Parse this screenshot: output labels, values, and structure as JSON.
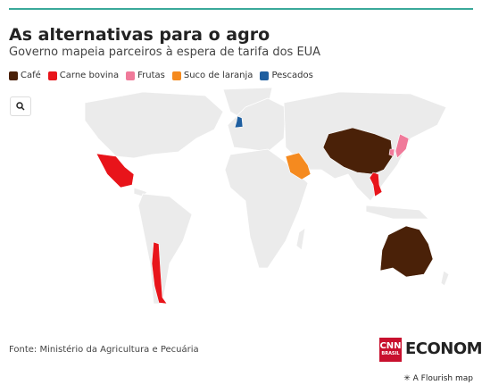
{
  "header": {
    "title": "As alternativas para o agro",
    "subtitle": "Governo mapeia parceiros à espera de tarifa dos EUA"
  },
  "legend": [
    {
      "label": "Café",
      "color": "#4a2108"
    },
    {
      "label": "Carne bovina",
      "color": "#e8141a"
    },
    {
      "label": "Frutas",
      "color": "#f07a9a"
    },
    {
      "label": "Suco de laranja",
      "color": "#f58a1f"
    },
    {
      "label": "Pescados",
      "color": "#1f5fa0"
    }
  ],
  "source": "Fonte: Ministério da Agricultura e Pecuária",
  "brand": {
    "logo_top": "CNN",
    "logo_bottom": "BRASIL",
    "name": "ECONOMIA"
  },
  "footer": "A Flourish map"
}
